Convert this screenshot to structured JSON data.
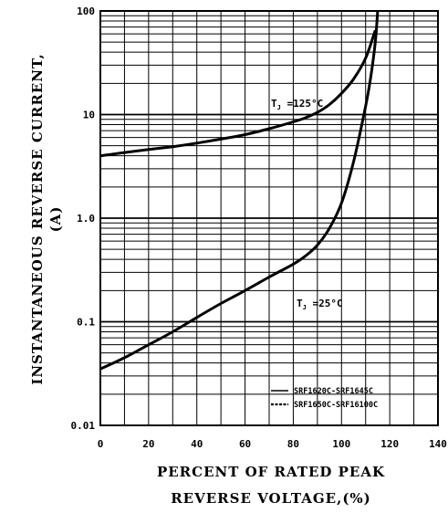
{
  "chart_data": {
    "type": "line",
    "title": "",
    "xlabel": [
      "PERCENT OF RATED PEAK",
      "REVERSE VOLTAGE,(%)"
    ],
    "ylabel": [
      "INSTANTANEOUS REVERSE CURRENT,",
      "(A)"
    ],
    "xlim": [
      0,
      140
    ],
    "ylim": [
      0.01,
      100
    ],
    "yscale": "log",
    "grid": true,
    "x_ticks": [
      "0",
      "20",
      "40",
      "60",
      "80",
      "100",
      "120",
      "140"
    ],
    "y_ticks": [
      "0.01",
      "0.1",
      "1.0",
      "10",
      "100"
    ],
    "series": [
      {
        "name": "TJ =125°C",
        "annotation": "T",
        "annotation_sub": "J",
        "annotation_rest": " =125°C",
        "x": [
          0,
          10,
          20,
          30,
          40,
          50,
          60,
          70,
          80,
          85,
          90,
          95,
          100,
          105,
          110,
          114
        ],
        "y": [
          4.0,
          4.3,
          4.6,
          4.9,
          5.3,
          5.8,
          6.4,
          7.3,
          8.5,
          9.3,
          10.5,
          12.5,
          16,
          22,
          35,
          65
        ]
      },
      {
        "name": "TJ =25°C",
        "annotation": "T",
        "annotation_sub": "J",
        "annotation_rest": " =25°C",
        "x": [
          0,
          10,
          20,
          30,
          40,
          50,
          60,
          70,
          80,
          85,
          90,
          95,
          100,
          105,
          110,
          112,
          114,
          115
        ],
        "y": [
          0.035,
          0.045,
          0.06,
          0.08,
          0.11,
          0.15,
          0.2,
          0.27,
          0.36,
          0.43,
          0.55,
          0.8,
          1.4,
          3.5,
          12,
          22,
          50,
          100
        ]
      }
    ],
    "legend": {
      "placement": "bottom-right",
      "entries": [
        {
          "style": "solid",
          "label": "SRF1620C-SRF1645C"
        },
        {
          "style": "dashed",
          "label": "SRF1650C-SRF16100C"
        }
      ]
    }
  }
}
